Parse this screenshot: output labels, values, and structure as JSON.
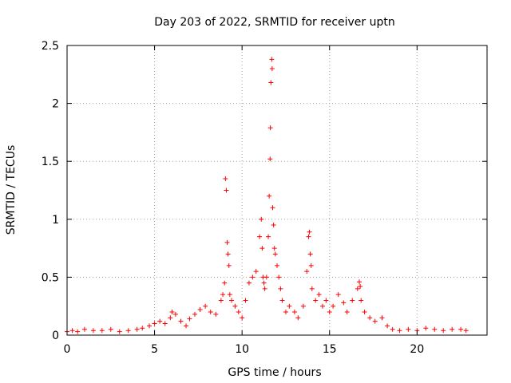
{
  "chart_data": {
    "type": "scatter",
    "title": "Day 203 of 2022, SRMTID for receiver uptn",
    "xlabel": "GPS time / hours",
    "ylabel": "SRMTID / TECUs",
    "xlim": [
      0,
      24
    ],
    "ylim": [
      0,
      2.5
    ],
    "xticks": [
      0,
      5,
      10,
      15,
      20
    ],
    "xtick_labels": [
      "0",
      "5",
      "10",
      "15",
      "20"
    ],
    "yticks": [
      0,
      0.5,
      1,
      1.5,
      2,
      2.5
    ],
    "ytick_labels": [
      "0",
      "0.5",
      "1",
      "1.5",
      "2",
      "2.5"
    ],
    "grid": true,
    "marker": "+",
    "color": "#ff0000",
    "series": [
      {
        "name": "SRMTID",
        "x": [
          0.0,
          0.3,
          0.6,
          1.0,
          1.5,
          2.0,
          2.5,
          3.0,
          3.5,
          4.0,
          4.3,
          4.7,
          5.0,
          5.3,
          5.6,
          5.9,
          6.0,
          6.2,
          6.5,
          6.8,
          7.0,
          7.3,
          7.6,
          7.9,
          8.2,
          8.5,
          8.8,
          8.9,
          9.0,
          9.05,
          9.1,
          9.15,
          9.2,
          9.25,
          9.3,
          9.4,
          9.6,
          9.8,
          10.0,
          10.2,
          10.4,
          10.6,
          10.8,
          11.0,
          11.1,
          11.15,
          11.2,
          11.25,
          11.3,
          11.4,
          11.5,
          11.55,
          11.6,
          11.62,
          11.65,
          11.7,
          11.72,
          11.75,
          11.8,
          11.85,
          11.9,
          12.0,
          12.1,
          12.2,
          12.3,
          12.5,
          12.7,
          13.0,
          13.2,
          13.5,
          13.7,
          13.8,
          13.85,
          13.9,
          13.95,
          14.0,
          14.2,
          14.4,
          14.6,
          14.8,
          15.0,
          15.2,
          15.5,
          15.8,
          16.0,
          16.3,
          16.6,
          16.7,
          16.75,
          16.8,
          17.0,
          17.3,
          17.6,
          18.0,
          18.3,
          18.6,
          19.0,
          19.5,
          20.0,
          20.5,
          21.0,
          21.5,
          22.0,
          22.5,
          22.8
        ],
        "y": [
          0.03,
          0.04,
          0.03,
          0.05,
          0.04,
          0.04,
          0.05,
          0.03,
          0.04,
          0.05,
          0.06,
          0.08,
          0.1,
          0.12,
          0.1,
          0.15,
          0.2,
          0.18,
          0.12,
          0.08,
          0.14,
          0.18,
          0.22,
          0.25,
          0.2,
          0.18,
          0.3,
          0.35,
          0.45,
          1.35,
          1.25,
          0.8,
          0.7,
          0.6,
          0.35,
          0.3,
          0.25,
          0.2,
          0.15,
          0.3,
          0.45,
          0.5,
          0.55,
          0.85,
          1.0,
          0.75,
          0.5,
          0.45,
          0.4,
          0.5,
          0.85,
          1.2,
          1.52,
          1.79,
          2.18,
          2.38,
          2.3,
          1.1,
          0.95,
          0.75,
          0.7,
          0.6,
          0.5,
          0.4,
          0.3,
          0.2,
          0.25,
          0.2,
          0.15,
          0.25,
          0.55,
          0.85,
          0.89,
          0.7,
          0.6,
          0.4,
          0.3,
          0.35,
          0.25,
          0.3,
          0.2,
          0.25,
          0.35,
          0.28,
          0.2,
          0.3,
          0.4,
          0.46,
          0.42,
          0.3,
          0.2,
          0.15,
          0.12,
          0.15,
          0.08,
          0.05,
          0.04,
          0.05,
          0.04,
          0.06,
          0.05,
          0.04,
          0.05,
          0.05,
          0.04
        ]
      }
    ]
  }
}
